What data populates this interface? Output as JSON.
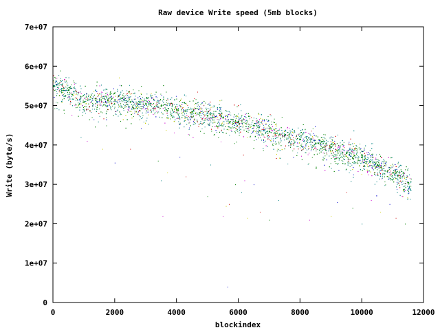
{
  "chart_data": {
    "type": "scatter",
    "title": "Raw device Write speed (5mb blocks)",
    "xlabel": "blockindex",
    "ylabel": "Write (byte/s)",
    "xlim": [
      0,
      12000
    ],
    "ylim": [
      0,
      70000000
    ],
    "x_ticks": [
      0,
      2000,
      4000,
      6000,
      8000,
      10000,
      12000
    ],
    "x_tick_labels": [
      "0",
      "2000",
      "4000",
      "6000",
      "8000",
      "10000",
      "12000"
    ],
    "y_ticks": [
      0,
      10000000,
      20000000,
      30000000,
      40000000,
      50000000,
      60000000,
      70000000
    ],
    "y_tick_labels": [
      "0",
      "1e+07",
      "2e+07",
      "3e+07",
      "4e+07",
      "5e+07",
      "6e+07",
      "7e+07"
    ],
    "grid": false,
    "legend": "none",
    "point_colors": [
      "#008080",
      "#008000",
      "#cc0000",
      "#0000cc",
      "#cccc00",
      "#cc00cc"
    ],
    "trend_series": {
      "x": [
        0,
        500,
        1000,
        1500,
        2000,
        2500,
        3000,
        3500,
        4000,
        4500,
        5000,
        5500,
        6000,
        6500,
        7000,
        7500,
        8000,
        8500,
        9000,
        9500,
        10000,
        10500,
        11000,
        11500
      ],
      "y": [
        55000000,
        54000000,
        51000000,
        51500000,
        51500000,
        51000000,
        50500000,
        50000000,
        49000000,
        48500000,
        47500000,
        47000000,
        46000000,
        45000000,
        43500000,
        42500000,
        41500000,
        40500000,
        39500000,
        38000000,
        37000000,
        35000000,
        33000000,
        30500000
      ]
    },
    "outlier_series": {
      "x": [
        900,
        1100,
        1600,
        2000,
        2500,
        3400,
        3500,
        3550,
        3700,
        4100,
        4300,
        5000,
        5100,
        5500,
        5600,
        5650,
        5700,
        5900,
        6100,
        6200,
        6300,
        6500,
        6700,
        7000,
        7300,
        8300,
        9000,
        9200,
        9500,
        9700,
        10000,
        10300,
        10600,
        10900,
        11100,
        11400
      ],
      "y": [
        42000000,
        41000000,
        39000000,
        35500000,
        39000000,
        36000000,
        31000000,
        22000000,
        33000000,
        37000000,
        32000000,
        27000000,
        35000000,
        22000000,
        24500000,
        4000000,
        25000000,
        30000000,
        28000000,
        31000000,
        21500000,
        30000000,
        23000000,
        21000000,
        26000000,
        21000000,
        22000000,
        25500000,
        28000000,
        24000000,
        20000000,
        26000000,
        23000000,
        25000000,
        21500000,
        20000000
      ]
    }
  }
}
